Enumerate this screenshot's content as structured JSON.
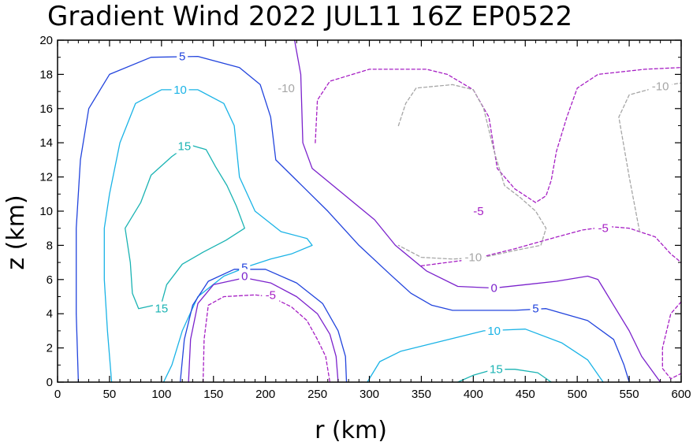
{
  "chart_data": {
    "type": "contour",
    "title": "Gradient Wind 2022 JUL11 16Z  EP0522",
    "xlabel": "r (km)",
    "ylabel": "z (km)",
    "xlim": [
      0,
      600
    ],
    "ylim": [
      0,
      20
    ],
    "xticks": [
      "0",
      "50",
      "100",
      "150",
      "200",
      "250",
      "300",
      "350",
      "400",
      "450",
      "500",
      "550",
      "600"
    ],
    "yticks": [
      "0",
      "2",
      "4",
      "6",
      "8",
      "10",
      "12",
      "14",
      "16",
      "18",
      "20"
    ],
    "grid": false,
    "contours": [
      {
        "level": "15",
        "color": "#1ab3b3",
        "dash": false,
        "line": [
          [
            78,
            4.3
          ],
          [
            100,
            4.6
          ],
          [
            105,
            5.7
          ],
          [
            120,
            6.9
          ],
          [
            140,
            7.6
          ],
          [
            162,
            8.3
          ],
          [
            180,
            9.0
          ],
          [
            172,
            10.3
          ],
          [
            163,
            11.5
          ],
          [
            152,
            12.6
          ],
          [
            143,
            13.6
          ],
          [
            126,
            13.9
          ],
          [
            110,
            13.2
          ],
          [
            90,
            12.1
          ],
          [
            80,
            10.5
          ],
          [
            65,
            9.0
          ],
          [
            70,
            7.0
          ],
          [
            72,
            5.2
          ],
          [
            78,
            4.3
          ]
        ],
        "labels": [
          [
            100,
            4.3
          ],
          [
            122,
            13.8
          ]
        ]
      },
      {
        "level": "15",
        "color": "#1ab3b3",
        "dash": false,
        "line": [
          [
            385,
            0
          ],
          [
            400,
            0.4
          ],
          [
            420,
            0.75
          ],
          [
            440,
            0.75
          ],
          [
            462,
            0.55
          ],
          [
            475,
            0
          ]
        ],
        "labels": [
          [
            422,
            0.75
          ]
        ]
      },
      {
        "level": "10",
        "color": "#1ab3e6",
        "dash": false,
        "line": [
          [
            52,
            0
          ],
          [
            48,
            3
          ],
          [
            45,
            6
          ],
          [
            45,
            9
          ],
          [
            50,
            11
          ],
          [
            60,
            14
          ],
          [
            75,
            16.3
          ],
          [
            100,
            17.1
          ],
          [
            135,
            17.1
          ],
          [
            160,
            16.3
          ],
          [
            170,
            15
          ],
          [
            175,
            12
          ],
          [
            190,
            10
          ],
          [
            215,
            8.8
          ],
          [
            240,
            8.4
          ],
          [
            245,
            8.0
          ],
          [
            225,
            7.5
          ],
          [
            205,
            7.2
          ],
          [
            185,
            6.8
          ],
          [
            160,
            6.2
          ],
          [
            135,
            5.0
          ],
          [
            120,
            3
          ],
          [
            110,
            1
          ],
          [
            102,
            0
          ]
        ],
        "labels": [
          [
            118,
            17.1
          ]
        ]
      },
      {
        "level": "10",
        "color": "#1ab3e6",
        "dash": false,
        "line": [
          [
            298,
            0
          ],
          [
            310,
            1.2
          ],
          [
            330,
            1.8
          ],
          [
            370,
            2.4
          ],
          [
            410,
            3.0
          ],
          [
            450,
            3.1
          ],
          [
            485,
            2.3
          ],
          [
            510,
            1.3
          ],
          [
            525,
            0
          ]
        ],
        "labels": [
          [
            420,
            3.0
          ]
        ]
      },
      {
        "level": "5",
        "color": "#2244dd",
        "dash": false,
        "line": [
          [
            20,
            0
          ],
          [
            18,
            4
          ],
          [
            18,
            9
          ],
          [
            22,
            13
          ],
          [
            30,
            16
          ],
          [
            50,
            18.0
          ],
          [
            90,
            19.0
          ],
          [
            135,
            19.05
          ],
          [
            175,
            18.4
          ],
          [
            195,
            17.4
          ],
          [
            205,
            15.5
          ],
          [
            210,
            13
          ],
          [
            230,
            11.8
          ],
          [
            260,
            10.0
          ],
          [
            290,
            8.0
          ],
          [
            320,
            6.3
          ],
          [
            340,
            5.2
          ],
          [
            360,
            4.5
          ],
          [
            380,
            4.2
          ],
          [
            440,
            4.2
          ],
          [
            470,
            4.3
          ],
          [
            510,
            3.6
          ],
          [
            535,
            2.5
          ],
          [
            545,
            1.0
          ],
          [
            550,
            0
          ]
        ],
        "labels": [
          [
            120,
            19.05
          ],
          [
            460,
            4.3
          ]
        ]
      },
      {
        "level": "5",
        "color": "#2244dd",
        "dash": false,
        "line": [
          [
            118,
            0
          ],
          [
            122,
            2.5
          ],
          [
            130,
            4.5
          ],
          [
            145,
            5.9
          ],
          [
            170,
            6.6
          ],
          [
            200,
            6.6
          ],
          [
            230,
            5.8
          ],
          [
            255,
            4.6
          ],
          [
            270,
            3.0
          ],
          [
            277,
            1.5
          ],
          [
            278,
            0
          ]
        ],
        "labels": [
          [
            180,
            6.7
          ]
        ]
      },
      {
        "level": "0",
        "color": "#7b22cc",
        "dash": false,
        "line": [
          [
            228,
            20
          ],
          [
            234,
            18
          ],
          [
            235,
            16
          ],
          [
            236,
            14
          ],
          [
            245,
            12.5
          ],
          [
            275,
            11
          ],
          [
            305,
            9.5
          ],
          [
            325,
            8.0
          ],
          [
            355,
            6.5
          ],
          [
            385,
            5.6
          ],
          [
            420,
            5.5
          ],
          [
            450,
            5.7
          ],
          [
            480,
            5.9
          ],
          [
            510,
            6.2
          ],
          [
            520,
            6.0
          ],
          [
            535,
            4.5
          ],
          [
            550,
            3.0
          ],
          [
            562,
            1.5
          ],
          [
            580,
            0
          ]
        ],
        "labels": [
          [
            420,
            5.5
          ]
        ]
      },
      {
        "level": "0",
        "color": "#7b22cc",
        "dash": false,
        "line": [
          [
            126,
            0
          ],
          [
            128,
            2.5
          ],
          [
            135,
            4.6
          ],
          [
            150,
            5.7
          ],
          [
            180,
            6.1
          ],
          [
            205,
            5.8
          ],
          [
            230,
            5.0
          ],
          [
            250,
            4.0
          ],
          [
            262,
            2.8
          ],
          [
            268,
            1.5
          ],
          [
            270,
            0
          ]
        ],
        "labels": [
          [
            180,
            6.2
          ]
        ]
      },
      {
        "level": "-5",
        "color": "#a61fc4",
        "dash": true,
        "line": [
          [
            140,
            0
          ],
          [
            141,
            2.5
          ],
          [
            145,
            4.5
          ],
          [
            160,
            5.0
          ],
          [
            190,
            5.1
          ],
          [
            205,
            5.0
          ],
          [
            225,
            4.4
          ],
          [
            240,
            3.6
          ],
          [
            250,
            2.5
          ],
          [
            258,
            1.5
          ],
          [
            262,
            0
          ]
        ],
        "labels": [
          [
            205,
            5.1
          ]
        ]
      },
      {
        "level": "-5",
        "color": "#a61fc4",
        "dash": true,
        "line": [
          [
            248,
            14
          ],
          [
            250,
            16.5
          ],
          [
            262,
            17.6
          ],
          [
            300,
            18.3
          ],
          [
            355,
            18.3
          ],
          [
            375,
            18.0
          ],
          [
            400,
            17.1
          ],
          [
            415,
            15.5
          ],
          [
            423,
            12.5
          ],
          [
            440,
            11.3
          ],
          [
            460,
            10.5
          ],
          [
            470,
            10.9
          ],
          [
            475,
            11.8
          ],
          [
            480,
            13.5
          ],
          [
            490,
            15.5
          ],
          [
            500,
            17.2
          ],
          [
            520,
            18.0
          ],
          [
            565,
            18.3
          ],
          [
            600,
            18.4
          ]
        ],
        "labels": [
          [
            405,
            10.0
          ]
        ]
      },
      {
        "level": "-5",
        "color": "#a61fc4",
        "dash": true,
        "line": [
          [
            350,
            6.8
          ],
          [
            400,
            7.2
          ],
          [
            440,
            7.8
          ],
          [
            475,
            8.4
          ],
          [
            505,
            8.9
          ],
          [
            530,
            9.1
          ],
          [
            550,
            9.0
          ],
          [
            575,
            8.5
          ],
          [
            590,
            7.5
          ],
          [
            600,
            7.0
          ]
        ],
        "labels": [
          [
            525,
            9.0
          ]
        ]
      },
      {
        "level": "-5",
        "color": "#a61fc4",
        "dash": true,
        "line": [
          [
            600,
            4.7
          ],
          [
            590,
            4.0
          ],
          [
            582,
            2.0
          ],
          [
            582,
            0.8
          ],
          [
            590,
            0.2
          ],
          [
            600,
            0.5
          ]
        ],
        "labels": []
      },
      {
        "level": "-10",
        "color": "#a6a6a6",
        "dash": true,
        "line": [
          [
            328,
            15
          ],
          [
            335,
            16.3
          ],
          [
            345,
            17.2
          ],
          [
            380,
            17.4
          ],
          [
            400,
            17.1
          ],
          [
            410,
            16.0
          ],
          [
            420,
            13.5
          ],
          [
            430,
            11.5
          ],
          [
            445,
            10.8
          ],
          [
            460,
            10.0
          ],
          [
            470,
            9.0
          ],
          [
            465,
            8.0
          ],
          [
            440,
            7.7
          ],
          [
            410,
            7.3
          ],
          [
            380,
            7.2
          ],
          [
            350,
            7.3
          ],
          [
            328,
            8.0
          ]
        ],
        "labels": [
          [
            220,
            17.2
          ],
          [
            400,
            7.3
          ]
        ]
      },
      {
        "level": "-10",
        "color": "#a6a6a6",
        "dash": true,
        "line": [
          [
            560,
            8.8
          ],
          [
            550,
            12
          ],
          [
            540,
            15.5
          ],
          [
            550,
            16.8
          ],
          [
            580,
            17.3
          ],
          [
            600,
            17.5
          ]
        ],
        "labels": [
          [
            580,
            17.3
          ]
        ]
      }
    ]
  }
}
